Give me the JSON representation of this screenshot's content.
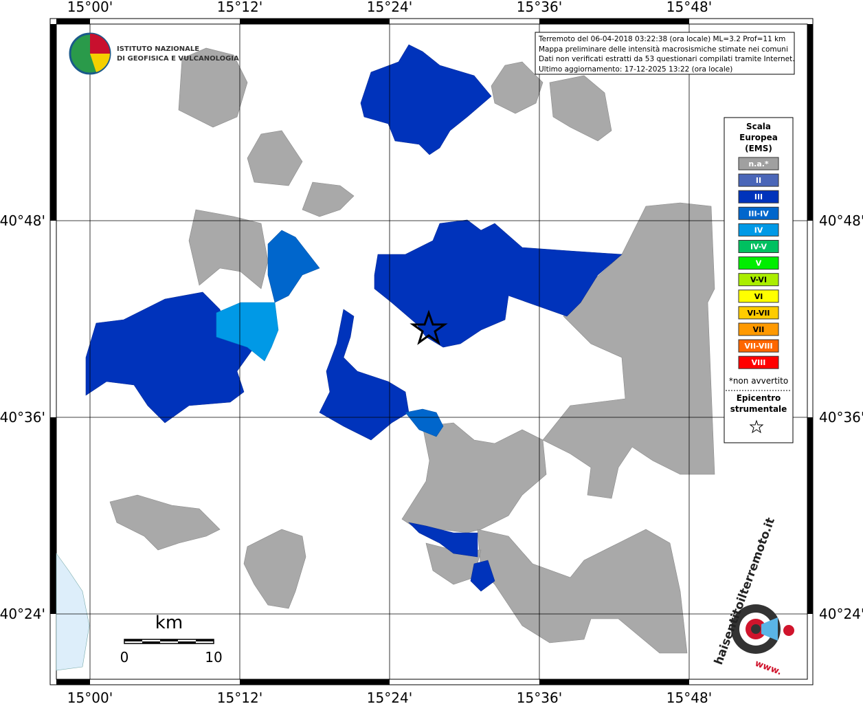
{
  "header": {
    "institute": [
      "ISTITUTO NAZIONALE",
      "DI GEOFISICA E VULCANOLOGIA"
    ]
  },
  "info": [
    "Terremoto del 06-04-2018 03:22:38 (ora locale) ML=3.2 Prof=11 km",
    "Mappa preliminare delle intensità macrosismiche stimate nei comuni",
    "Dati non verificati estratti da 53 questionari compilati tramite Internet.",
    "Ultimo aggiornamento: 17-12-2025 13:22 (ora locale)"
  ],
  "axes": {
    "longitude": [
      "15°00'",
      "15°12'",
      "15°24'",
      "15°36'",
      "15°48'"
    ],
    "latitude": [
      "40°48'",
      "40°36'",
      "40°24'"
    ]
  },
  "legend": {
    "title": [
      "Scala",
      "Europea",
      "(EMS)"
    ],
    "items": [
      {
        "label": "n.a.*",
        "color": "#a0a0a0"
      },
      {
        "label": "II",
        "color": "#4a66b8"
      },
      {
        "label": "III",
        "color": "#0033bb"
      },
      {
        "label": "III-IV",
        "color": "#0066cc"
      },
      {
        "label": "IV",
        "color": "#0099e6"
      },
      {
        "label": "IV-V",
        "color": "#00c060"
      },
      {
        "label": "V",
        "color": "#00ee00"
      },
      {
        "label": "V-VI",
        "color": "#aaee00"
      },
      {
        "label": "VI",
        "color": "#ffff00"
      },
      {
        "label": "VI-VII",
        "color": "#ffcc00"
      },
      {
        "label": "VII",
        "color": "#ff9900"
      },
      {
        "label": "VII-VIII",
        "color": "#ff6600"
      },
      {
        "label": "VIII",
        "color": "#ff0000"
      }
    ],
    "note": "*non avvertito",
    "epicenter": [
      "Epicentro",
      "strumentale"
    ]
  },
  "scale_bar": {
    "unit": "km",
    "labels": [
      "0",
      "10"
    ]
  },
  "watermark": {
    "site": "haisentitoilterremoto.it",
    "prefix": "www."
  }
}
